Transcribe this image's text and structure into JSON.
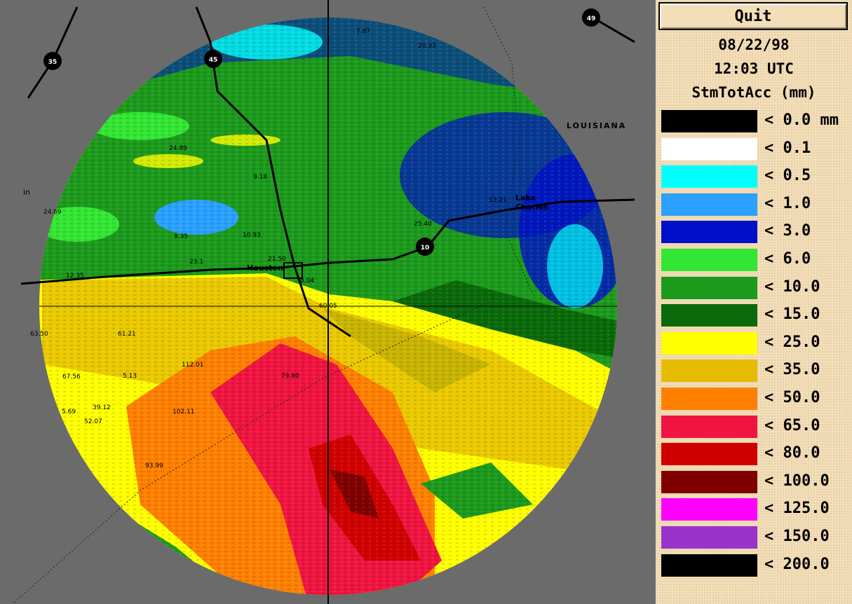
{
  "header": {
    "quit": "Quit",
    "date": "08/22/98",
    "time": "12:03 UTC",
    "product": "StmTotAcc (mm)"
  },
  "legend": [
    {
      "label": "< 0.0 mm",
      "color": "#000000"
    },
    {
      "label": "< 0.1",
      "color": "#ffffff"
    },
    {
      "label": "< 0.5",
      "color": "#00ffff"
    },
    {
      "label": "< 1.0",
      "color": "#2aa0ff"
    },
    {
      "label": "< 3.0",
      "color": "#0010c8"
    },
    {
      "label": "< 6.0",
      "color": "#33e633"
    },
    {
      "label": "< 10.0",
      "color": "#1c9a1c"
    },
    {
      "label": "< 15.0",
      "color": "#0a6a0a"
    },
    {
      "label": "< 25.0",
      "color": "#ffff00"
    },
    {
      "label": "< 35.0",
      "color": "#e6bc00"
    },
    {
      "label": "< 50.0",
      "color": "#ff8000"
    },
    {
      "label": "< 65.0",
      "color": "#f01440"
    },
    {
      "label": "< 80.0",
      "color": "#d00000"
    },
    {
      "label": "< 100.0",
      "color": "#800000"
    },
    {
      "label": "< 125.0",
      "color": "#ff00ff"
    },
    {
      "label": "< 150.0",
      "color": "#9933cc"
    },
    {
      "label": "< 200.0",
      "color": "#000000"
    }
  ],
  "map": {
    "state": "LOUISIANA",
    "city1": "Houston",
    "city2a": "Lake",
    "city2b": "Charles",
    "edge": "in",
    "shields": [
      "35",
      "45",
      "49",
      "10"
    ],
    "amounts": [
      "24.89",
      "9.18",
      "24.69",
      "9.35",
      "10.93",
      "21.50",
      "23.1",
      "12.35",
      "8.04",
      "60.05",
      "63.50",
      "61.21",
      "112.01",
      "67.56",
      "5.13",
      "79.80",
      "5.69",
      "39.12",
      "52.07",
      "102.11",
      "93.99",
      "25.40",
      "13.21",
      "7.87",
      "20.33"
    ]
  }
}
